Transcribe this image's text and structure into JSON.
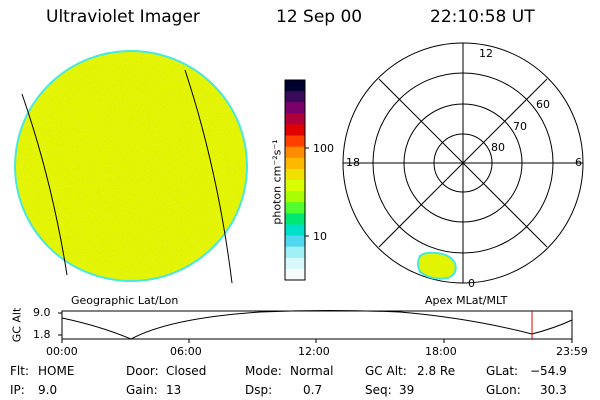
{
  "header": {
    "title": "Ultraviolet Imager",
    "date": "12 Sep 00",
    "time": "22:10:58 UT"
  },
  "colorbar": {
    "label": "photon cm⁻²s⁻¹",
    "ticks": [
      "100",
      "10"
    ],
    "colors": [
      "#000030",
      "#3a0a5a",
      "#7a006a",
      "#b0003a",
      "#e00000",
      "#ff4000",
      "#ff8c00",
      "#ffb800",
      "#f0e000",
      "#d8ff00",
      "#a8ff00",
      "#50ff30",
      "#00e870",
      "#00e0c8",
      "#50d8f0",
      "#a0f0f8",
      "#d8f8fc",
      "#f4fcfc"
    ]
  },
  "left_panel": {
    "label": "Geographic Lat/Lon",
    "disk_color": "#e2f400",
    "edge_color": "#48e8e0"
  },
  "polar_plot": {
    "label": "Apex MLat/MLT",
    "mlt_labels": {
      "top": "12",
      "left": "18",
      "right": "6",
      "bottom": "0"
    },
    "lat_labels": [
      "60",
      "70",
      "80"
    ],
    "blob_color": "#e2f400"
  },
  "altitude_plot": {
    "ylabel": "GC Alt",
    "yticks": [
      "9.0",
      "1.8"
    ],
    "xticks": [
      "00:00",
      "06:00",
      "12:00",
      "18:00",
      "23:59"
    ],
    "marker_color": "#e00000"
  },
  "info": {
    "flt_label": "Flt:",
    "flt_value": "HOME",
    "ip_label": "IP:",
    "ip_value": "9.0",
    "door_label": "Door:",
    "door_value": "Closed",
    "gain_label": "Gain:",
    "gain_value": "13",
    "mode_label": "Mode:",
    "mode_value": "Normal",
    "dsp_label": "Dsp:",
    "dsp_value": "0.7",
    "gcalt_label": "GC Alt:",
    "gcalt_value": "2.8 Re",
    "seq_label": "Seq:",
    "seq_value": "39",
    "glat_label": "GLat:",
    "glat_value": "−54.9",
    "glon_label": "GLon:",
    "glon_value": "30.3"
  }
}
